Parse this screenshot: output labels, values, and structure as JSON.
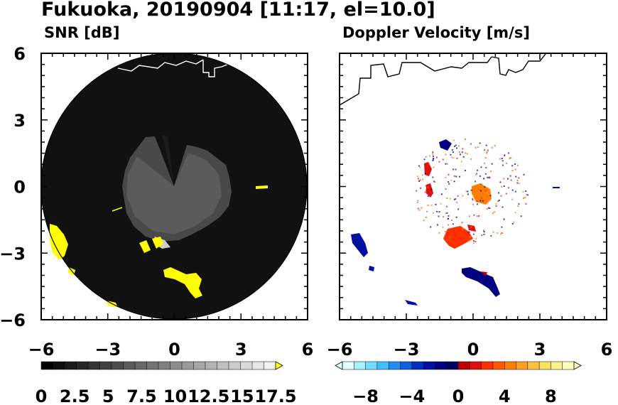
{
  "header": {
    "title": "Fukuoka, 20190904 [11:17, el=10.0]"
  },
  "chart_data": [
    {
      "type": "heatmap",
      "title": "SNR [dB]",
      "xlim": [
        -6,
        6
      ],
      "ylim": [
        -6,
        6
      ],
      "xticks": [
        "−6",
        "−3",
        "0",
        "3",
        "6"
      ],
      "yticks": [
        "6",
        "3",
        "0",
        "−3",
        "−6"
      ],
      "colorbar": {
        "min": 0,
        "max": 17.5,
        "labels": [
          "0",
          "2.5",
          "5",
          "7.5",
          "10",
          "12.5",
          "15",
          "17.5"
        ],
        "colors": [
          "#000000",
          "#0e0e0e",
          "#1a1a1a",
          "#262626",
          "#333333",
          "#404040",
          "#4d4d4d",
          "#5a5a5a",
          "#676767",
          "#737373",
          "#808080",
          "#8d8d8d",
          "#9a9a9a",
          "#a6a6a6",
          "#b3b3b3",
          "#c0c0c0",
          "#cdcdcd",
          "#dadada",
          "#e6e6e6",
          "#f2f2f2"
        ],
        "overflow_color": "#ffff00"
      }
    },
    {
      "type": "heatmap",
      "title": "Doppler Velocity [m/s]",
      "xlim": [
        -6,
        6
      ],
      "ylim": [
        -6,
        6
      ],
      "xticks": [
        "−6",
        "−3",
        "0",
        "3",
        "6"
      ],
      "yticks": [],
      "colorbar": {
        "min": -10,
        "max": 10,
        "labels": [
          "−8",
          "−4",
          "0",
          "4",
          "8"
        ],
        "colors": [
          "#e0ffff",
          "#a8f0ff",
          "#70dcff",
          "#40c0ff",
          "#2090f0",
          "#1060e0",
          "#0030c0",
          "#0010a0",
          "#000080",
          "#000060",
          "#c00000",
          "#e01010",
          "#ff3000",
          "#ff5a00",
          "#ff8000",
          "#ffa020",
          "#ffc040",
          "#ffe060",
          "#fff090",
          "#ffffc0"
        ],
        "underflow_color": "#e0ffff",
        "overflow_color": "#ffffc0"
      }
    }
  ]
}
